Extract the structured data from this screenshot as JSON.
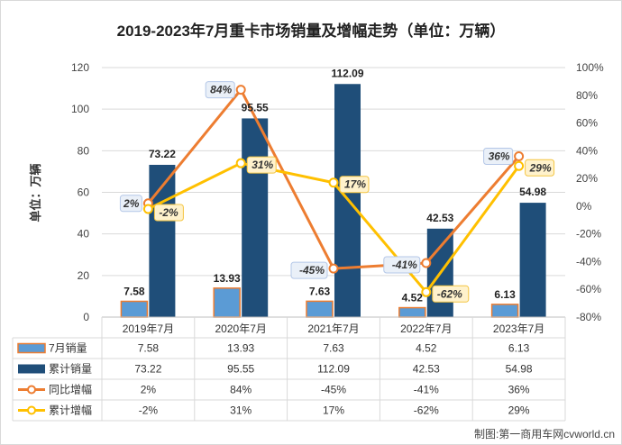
{
  "chart_data": {
    "type": "bar",
    "title": "2019-2023年7月重卡市场销量及增幅走势（单位：万辆）",
    "ylabel": "单位：万辆",
    "categories": [
      "2019年7月",
      "2020年7月",
      "2021年7月",
      "2022年7月",
      "2023年7月"
    ],
    "ylim": [
      0,
      120
    ],
    "y_ticks": [
      "0",
      "20",
      "40",
      "60",
      "80",
      "100",
      "120"
    ],
    "y2lim": [
      -80,
      100
    ],
    "y2_ticks": [
      "-80%",
      "-60%",
      "-40%",
      "-20%",
      "0%",
      "20%",
      "40%",
      "60%",
      "80%",
      "100%"
    ],
    "grid": true,
    "series": [
      {
        "name": "7月销量",
        "type": "bar",
        "axis": "left",
        "color": "#5B9BD5",
        "border": "#ED7D31",
        "values": [
          7.58,
          13.93,
          7.63,
          4.52,
          6.13
        ],
        "labels": [
          "7.58",
          "13.93",
          "7.63",
          "4.52",
          "6.13"
        ]
      },
      {
        "name": "累计销量",
        "type": "bar",
        "axis": "left",
        "color": "#1F4E79",
        "values": [
          73.22,
          95.55,
          112.09,
          42.53,
          54.98
        ],
        "labels": [
          "73.22",
          "95.55",
          "112.09",
          "42.53",
          "54.98"
        ]
      },
      {
        "name": "同比增幅",
        "type": "line",
        "axis": "right",
        "color": "#ED7D31",
        "values": [
          2,
          84,
          -45,
          -41,
          36
        ],
        "labels": [
          "2%",
          "84%",
          "-45%",
          "-41%",
          "36%"
        ]
      },
      {
        "name": "累计增幅",
        "type": "line",
        "axis": "right",
        "color": "#FFC000",
        "values": [
          -2,
          31,
          17,
          -62,
          29
        ],
        "labels": [
          "-2%",
          "31%",
          "17%",
          "-62%",
          "29%"
        ]
      }
    ],
    "source": "制图:第一商用车网cvworld.cn"
  }
}
